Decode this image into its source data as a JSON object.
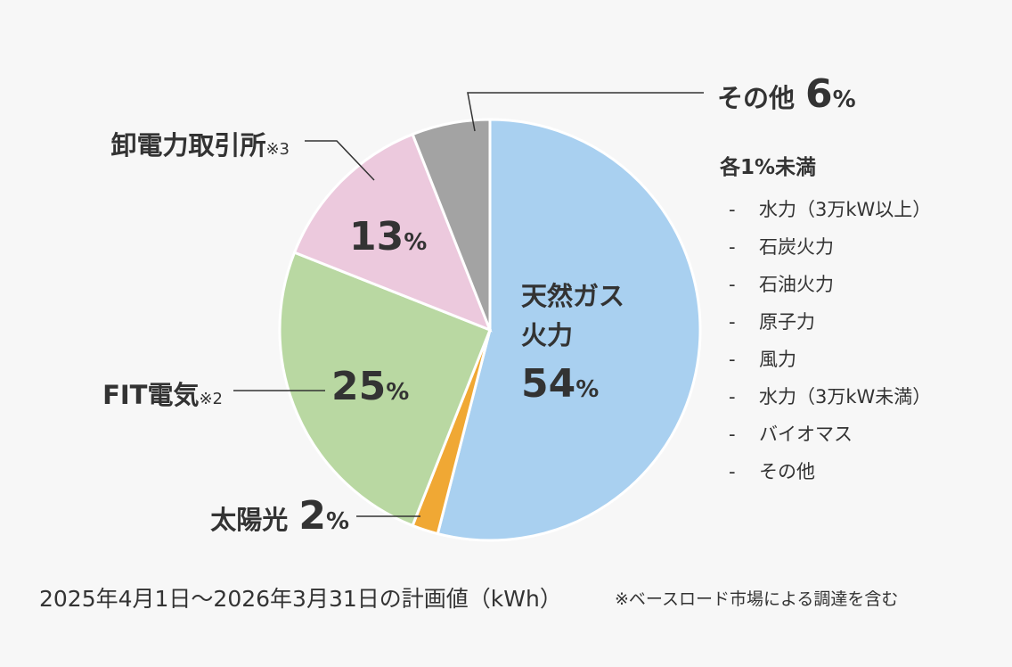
{
  "chart_data": {
    "type": "pie",
    "categories": [
      "天然ガス火力",
      "太陽光",
      "FIT電気",
      "卸電力取引所",
      "その他"
    ],
    "notes": [
      null,
      null,
      "※2",
      "※3",
      null
    ],
    "values": [
      54,
      2,
      25,
      13,
      6
    ],
    "value_labels": [
      "54%",
      "2%",
      "25%",
      "13%",
      "6%"
    ],
    "colors": [
      "#a9d0f0",
      "#f0a834",
      "#b9d8a2",
      "#ecc9dd",
      "#a3a3a3"
    ],
    "breakdown_title": "各1%未満",
    "breakdown_items": [
      "水力（3万kW以上）",
      "石炭火力",
      "石油火力",
      "原子力",
      "風力",
      "水力（3万kW未満）",
      "バイオマス",
      "その他"
    ],
    "caption": "2025年4月1日～2026年3月31日の計画値（kWh）",
    "footnote": "※ベースロード市場による調達を含む"
  }
}
